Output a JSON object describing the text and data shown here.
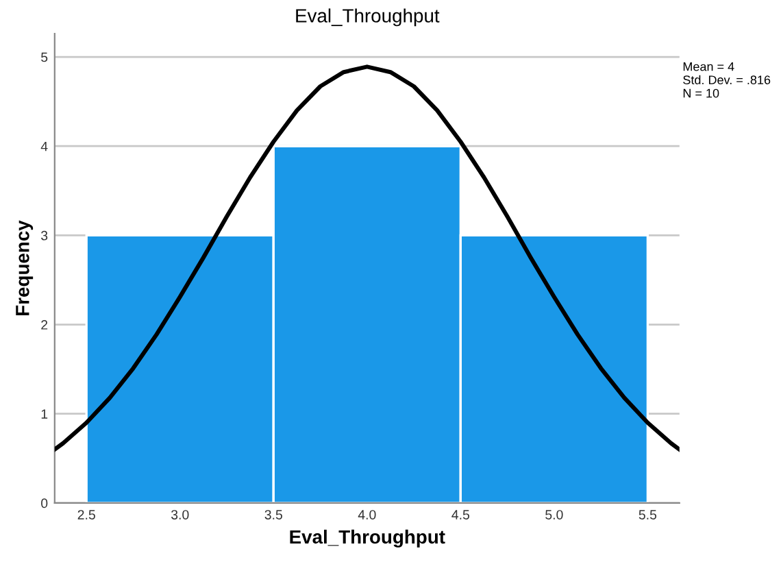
{
  "chart_data": {
    "type": "histogram",
    "title": "Eval_Throughput",
    "xlabel": "Eval_Throughput",
    "ylabel": "Frequency",
    "bins": [
      2.5,
      3.5,
      4.5,
      5.5
    ],
    "values": [
      3,
      4,
      3
    ],
    "color": "#1a98e8",
    "series": [
      {
        "type": "line",
        "color": "#000000",
        "x": [
          2.33,
          2.375,
          2.5,
          2.625,
          2.75,
          2.875,
          3.0,
          3.125,
          3.25,
          3.375,
          3.5,
          3.625,
          3.75,
          3.875,
          4.0,
          4.125,
          4.25,
          4.375,
          4.5,
          4.625,
          4.75,
          4.875,
          5.0,
          5.125,
          5.25,
          5.375,
          5.5,
          5.625,
          5.67
        ],
        "values": [
          0.6,
          0.67,
          0.9,
          1.18,
          1.51,
          1.89,
          2.31,
          2.75,
          3.21,
          3.65,
          4.05,
          4.4,
          4.67,
          4.83,
          4.89,
          4.83,
          4.67,
          4.4,
          4.05,
          3.65,
          3.21,
          2.75,
          2.31,
          1.89,
          1.51,
          1.18,
          0.9,
          0.67,
          0.6
        ]
      }
    ],
    "xlim": [
      2.33,
      5.67
    ],
    "xticks": [
      2.5,
      {
        "value": 3.0,
        "label": "3.0"
      },
      3.5,
      {
        "value": 4.0,
        "label": "4.0"
      },
      4.5,
      {
        "value": 5.0,
        "label": "5.0"
      },
      5.5
    ],
    "ylim": [
      0,
      5.26
    ],
    "yticks": [
      0,
      1,
      2,
      3,
      4,
      5
    ],
    "grid": "y",
    "marker": "none",
    "line_style": "solid",
    "annotations": [
      "Mean = 4\nStd. Dev. = .816\nN = 10"
    ]
  }
}
